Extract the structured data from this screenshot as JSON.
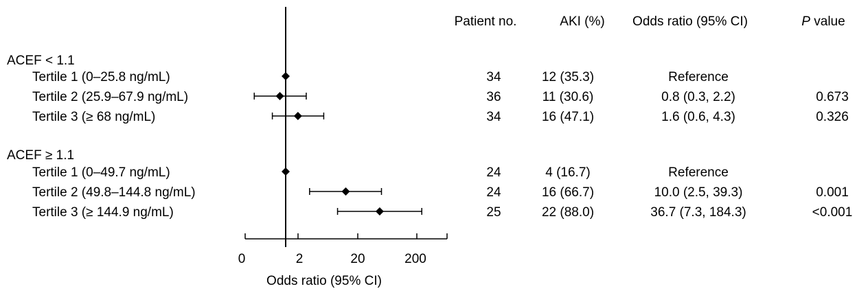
{
  "chart_data": {
    "type": "forest",
    "x_axis": {
      "label": "Odds ratio (95% CI)",
      "scale": "log",
      "ticks": [
        "0",
        "2",
        "20",
        "200"
      ],
      "reference_line": 1
    },
    "columns": [
      "Patient no.",
      "AKI (%)",
      "Odds ratio (95% CI)",
      "P value"
    ],
    "groups": [
      {
        "label": "ACEF < 1.1",
        "rows": [
          {
            "label": "Tertile 1 (0–25.8 ng/mL)",
            "patients": "34",
            "aki": "12 (35.3)",
            "or_text": "Reference",
            "p": "",
            "or": 1,
            "lo": null,
            "hi": null
          },
          {
            "label": "Tertile 2 (25.9–67.9 ng/mL)",
            "patients": "36",
            "aki": "11 (30.6)",
            "or_text": "0.8 (0.3, 2.2)",
            "p": "0.673",
            "or": 0.8,
            "lo": 0.3,
            "hi": 2.2
          },
          {
            "label": "Tertile 3 (≥ 68 ng/mL)",
            "patients": "34",
            "aki": "16 (47.1)",
            "or_text": "1.6 (0.6, 4.3)",
            "p": "0.326",
            "or": 1.6,
            "lo": 0.6,
            "hi": 4.3
          }
        ]
      },
      {
        "label": "ACEF ≥ 1.1",
        "rows": [
          {
            "label": "Tertile 1 (0–49.7 ng/mL)",
            "patients": "24",
            "aki": "4 (16.7)",
            "or_text": "Reference",
            "p": "",
            "or": 1,
            "lo": null,
            "hi": null
          },
          {
            "label": "Tertile 2 (49.8–144.8 ng/mL)",
            "patients": "24",
            "aki": "16 (66.7)",
            "or_text": "10.0 (2.5, 39.3)",
            "p": "0.001",
            "or": 10.0,
            "lo": 2.5,
            "hi": 39.3
          },
          {
            "label": "Tertile 3 (≥ 144.9 ng/mL)",
            "patients": "25",
            "aki": "22 (88.0)",
            "or_text": "36.7 (7.3, 184.3)",
            "p": "<0.001",
            "or": 36.7,
            "lo": 7.3,
            "hi": 184.3
          }
        ]
      }
    ]
  }
}
